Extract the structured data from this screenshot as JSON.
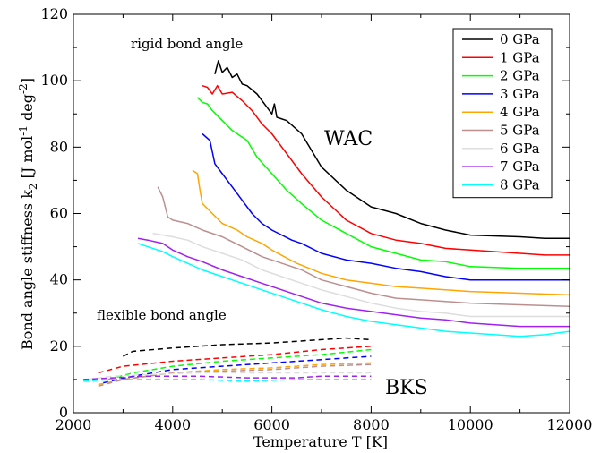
{
  "chart_data": {
    "type": "line",
    "title": "",
    "xlabel": "Temperature  T  [K]",
    "ylabel_main": "Bond angle stiffness  k",
    "ylabel_sub": "2",
    "ylabel_unit": "  [J mol",
    "ylabel_exp1": "-1",
    "ylabel_mid": "  deg",
    "ylabel_exp2": "-2",
    "ylabel_end": "]",
    "xlim": [
      2000,
      12000
    ],
    "ylim": [
      0,
      120
    ],
    "xticks": [
      2000,
      4000,
      6000,
      8000,
      10000,
      12000
    ],
    "yticks": [
      0,
      20,
      40,
      60,
      80,
      100,
      120
    ],
    "legend_position": "top-right",
    "annotations": {
      "rigid": "rigid bond angle",
      "flexible": "flexible bond angle",
      "wac": "WAC",
      "bks": "BKS"
    },
    "series": [
      {
        "name": "0 GPa",
        "color": "#000000",
        "wac": [
          [
            4850,
            102
          ],
          [
            4920,
            106
          ],
          [
            5000,
            102.5
          ],
          [
            5100,
            104
          ],
          [
            5200,
            101
          ],
          [
            5300,
            102
          ],
          [
            5400,
            99
          ],
          [
            5500,
            98.5
          ],
          [
            5700,
            96
          ],
          [
            5900,
            92
          ],
          [
            6000,
            90
          ],
          [
            6050,
            93
          ],
          [
            6100,
            89
          ],
          [
            6300,
            88
          ],
          [
            6600,
            84
          ],
          [
            7000,
            74
          ],
          [
            7500,
            67
          ],
          [
            8000,
            62
          ],
          [
            8500,
            60
          ],
          [
            9000,
            57
          ],
          [
            9500,
            55
          ],
          [
            10000,
            53.5
          ],
          [
            11000,
            53
          ],
          [
            11500,
            52.5
          ],
          [
            12000,
            52.5
          ]
        ],
        "bks": [
          [
            3000,
            17
          ],
          [
            3200,
            18.5
          ],
          [
            4000,
            19.5
          ],
          [
            5000,
            20.5
          ],
          [
            6000,
            21
          ],
          [
            7000,
            22
          ],
          [
            7500,
            22.5
          ],
          [
            8000,
            22
          ]
        ]
      },
      {
        "name": "1 GPa",
        "color": "#ff0000",
        "wac": [
          [
            4600,
            98.5
          ],
          [
            4700,
            98
          ],
          [
            4800,
            96
          ],
          [
            4900,
            98.5
          ],
          [
            5000,
            96
          ],
          [
            5200,
            96.5
          ],
          [
            5400,
            94
          ],
          [
            5600,
            91
          ],
          [
            5800,
            87
          ],
          [
            6000,
            84
          ],
          [
            6200,
            80
          ],
          [
            6600,
            72
          ],
          [
            7000,
            65
          ],
          [
            7500,
            58
          ],
          [
            8000,
            54
          ],
          [
            8500,
            52
          ],
          [
            9000,
            51
          ],
          [
            9500,
            49.5
          ],
          [
            10000,
            49
          ],
          [
            11000,
            48
          ],
          [
            11500,
            47.5
          ],
          [
            12000,
            47.5
          ]
        ],
        "bks": [
          [
            2500,
            12
          ],
          [
            3000,
            14
          ],
          [
            4000,
            15.5
          ],
          [
            5000,
            16.5
          ],
          [
            6000,
            17.5
          ],
          [
            7000,
            19
          ],
          [
            8000,
            20
          ]
        ]
      },
      {
        "name": "2 GPa",
        "color": "#00ff00",
        "wac": [
          [
            4500,
            95
          ],
          [
            4600,
            93.5
          ],
          [
            4700,
            93
          ],
          [
            4800,
            91
          ],
          [
            5000,
            88
          ],
          [
            5200,
            85
          ],
          [
            5500,
            82
          ],
          [
            5700,
            77
          ],
          [
            6000,
            72
          ],
          [
            6300,
            67
          ],
          [
            6600,
            63
          ],
          [
            7000,
            58
          ],
          [
            7500,
            54
          ],
          [
            8000,
            50
          ],
          [
            8500,
            48
          ],
          [
            9000,
            46
          ],
          [
            9500,
            45.5
          ],
          [
            10000,
            44
          ],
          [
            11000,
            43.5
          ],
          [
            11500,
            43.5
          ],
          [
            12000,
            43.5
          ]
        ],
        "bks": [
          [
            2700,
            10
          ],
          [
            3200,
            12
          ],
          [
            4000,
            14
          ],
          [
            5000,
            15.5
          ],
          [
            6000,
            16.5
          ],
          [
            7000,
            17.5
          ],
          [
            8000,
            19
          ]
        ]
      },
      {
        "name": "3 GPa",
        "color": "#0000ff",
        "wac": [
          [
            4600,
            84
          ],
          [
            4750,
            82
          ],
          [
            4850,
            75
          ],
          [
            5000,
            72
          ],
          [
            5200,
            68
          ],
          [
            5400,
            64
          ],
          [
            5600,
            60
          ],
          [
            5800,
            57
          ],
          [
            6000,
            55
          ],
          [
            6400,
            52
          ],
          [
            6600,
            51
          ],
          [
            7000,
            48
          ],
          [
            7500,
            46
          ],
          [
            8000,
            45
          ],
          [
            8500,
            43.5
          ],
          [
            9000,
            42.5
          ],
          [
            9500,
            41
          ],
          [
            10000,
            40
          ],
          [
            11000,
            40
          ],
          [
            11500,
            40
          ],
          [
            12000,
            40
          ]
        ],
        "bks": [
          [
            2600,
            9
          ],
          [
            3200,
            11
          ],
          [
            4000,
            13
          ],
          [
            5000,
            14
          ],
          [
            6000,
            15
          ],
          [
            7000,
            16
          ],
          [
            8000,
            17
          ]
        ]
      },
      {
        "name": "4 GPa",
        "color": "#ffa500",
        "wac": [
          [
            4400,
            73
          ],
          [
            4500,
            72
          ],
          [
            4550,
            67
          ],
          [
            4600,
            63
          ],
          [
            4800,
            60
          ],
          [
            5000,
            57
          ],
          [
            5300,
            55
          ],
          [
            5500,
            53
          ],
          [
            5800,
            51
          ],
          [
            6000,
            49
          ],
          [
            6500,
            45
          ],
          [
            7000,
            42
          ],
          [
            7500,
            40
          ],
          [
            8000,
            39
          ],
          [
            8500,
            38
          ],
          [
            9000,
            37.5
          ],
          [
            9500,
            37
          ],
          [
            10000,
            36.5
          ],
          [
            11000,
            36
          ],
          [
            12000,
            35.5
          ]
        ],
        "bks": [
          [
            2500,
            8.5
          ],
          [
            3000,
            10
          ],
          [
            4000,
            12
          ],
          [
            5000,
            13
          ],
          [
            6000,
            13.5
          ],
          [
            7000,
            14.5
          ],
          [
            8000,
            15
          ]
        ]
      },
      {
        "name": "5 GPa",
        "color": "#bc8f8f",
        "wac": [
          [
            3700,
            68
          ],
          [
            3800,
            65
          ],
          [
            3900,
            59
          ],
          [
            4000,
            58
          ],
          [
            4300,
            57
          ],
          [
            4600,
            55
          ],
          [
            5000,
            53
          ],
          [
            5400,
            50
          ],
          [
            5800,
            47
          ],
          [
            6200,
            45
          ],
          [
            6600,
            43
          ],
          [
            7000,
            40
          ],
          [
            7500,
            38
          ],
          [
            8000,
            36
          ],
          [
            8500,
            34.5
          ],
          [
            9000,
            34
          ],
          [
            9500,
            33.5
          ],
          [
            10000,
            33
          ],
          [
            11000,
            32.5
          ],
          [
            12000,
            32
          ]
        ],
        "bks": [
          [
            2500,
            8
          ],
          [
            3000,
            10
          ],
          [
            4000,
            12
          ],
          [
            5000,
            12.5
          ],
          [
            6000,
            13
          ],
          [
            7000,
            14
          ],
          [
            8000,
            14.5
          ]
        ]
      },
      {
        "name": "6 GPa",
        "color": "#dddddd",
        "wac": [
          [
            3600,
            54
          ],
          [
            3800,
            53.5
          ],
          [
            4000,
            53
          ],
          [
            4300,
            52
          ],
          [
            4600,
            50
          ],
          [
            5000,
            48
          ],
          [
            5400,
            46
          ],
          [
            5800,
            43
          ],
          [
            6200,
            41
          ],
          [
            6600,
            39
          ],
          [
            7000,
            37
          ],
          [
            7500,
            35
          ],
          [
            8000,
            33
          ],
          [
            8500,
            31.5
          ],
          [
            9000,
            30.5
          ],
          [
            9500,
            30
          ],
          [
            10000,
            29
          ],
          [
            11000,
            29
          ],
          [
            12000,
            29
          ]
        ],
        "bks": [
          [
            2300,
            10
          ],
          [
            2800,
            11
          ],
          [
            3500,
            11.5
          ],
          [
            4500,
            12
          ],
          [
            5500,
            12
          ],
          [
            6500,
            12
          ],
          [
            8000,
            12
          ]
        ]
      },
      {
        "name": "7 GPa",
        "color": "#a020f0",
        "wac": [
          [
            3300,
            52.5
          ],
          [
            3500,
            52
          ],
          [
            3800,
            51
          ],
          [
            4000,
            49
          ],
          [
            4300,
            47
          ],
          [
            4600,
            45.5
          ],
          [
            5000,
            43
          ],
          [
            5400,
            41
          ],
          [
            5800,
            39
          ],
          [
            6200,
            37
          ],
          [
            6600,
            35
          ],
          [
            7000,
            33
          ],
          [
            7500,
            31.5
          ],
          [
            8000,
            30.5
          ],
          [
            8500,
            29.5
          ],
          [
            9000,
            28.5
          ],
          [
            9500,
            28
          ],
          [
            10000,
            27
          ],
          [
            11000,
            26
          ],
          [
            12000,
            26
          ]
        ],
        "bks": [
          [
            2200,
            10
          ],
          [
            2800,
            10.5
          ],
          [
            3500,
            11
          ],
          [
            4500,
            11
          ],
          [
            5500,
            10.5
          ],
          [
            6500,
            10.5
          ],
          [
            7000,
            11
          ],
          [
            8000,
            11
          ]
        ]
      },
      {
        "name": "8 GPa",
        "color": "#00ffff",
        "wac": [
          [
            3300,
            51
          ],
          [
            3500,
            50
          ],
          [
            3800,
            48.5
          ],
          [
            4000,
            47
          ],
          [
            4300,
            45
          ],
          [
            4600,
            43
          ],
          [
            5000,
            41
          ],
          [
            5400,
            39
          ],
          [
            5800,
            37
          ],
          [
            6200,
            35
          ],
          [
            6600,
            33
          ],
          [
            7000,
            31
          ],
          [
            7500,
            29
          ],
          [
            8000,
            27.5
          ],
          [
            8500,
            26.5
          ],
          [
            9000,
            25.5
          ],
          [
            9500,
            24.5
          ],
          [
            10000,
            24
          ],
          [
            10500,
            23.5
          ],
          [
            11000,
            23
          ],
          [
            11500,
            23.5
          ],
          [
            12000,
            24.5
          ]
        ],
        "bks": [
          [
            2200,
            9.5
          ],
          [
            2800,
            10
          ],
          [
            3500,
            10
          ],
          [
            4500,
            10
          ],
          [
            5500,
            9.5
          ],
          [
            6500,
            10
          ],
          [
            7000,
            10
          ],
          [
            8000,
            10
          ]
        ]
      }
    ]
  }
}
